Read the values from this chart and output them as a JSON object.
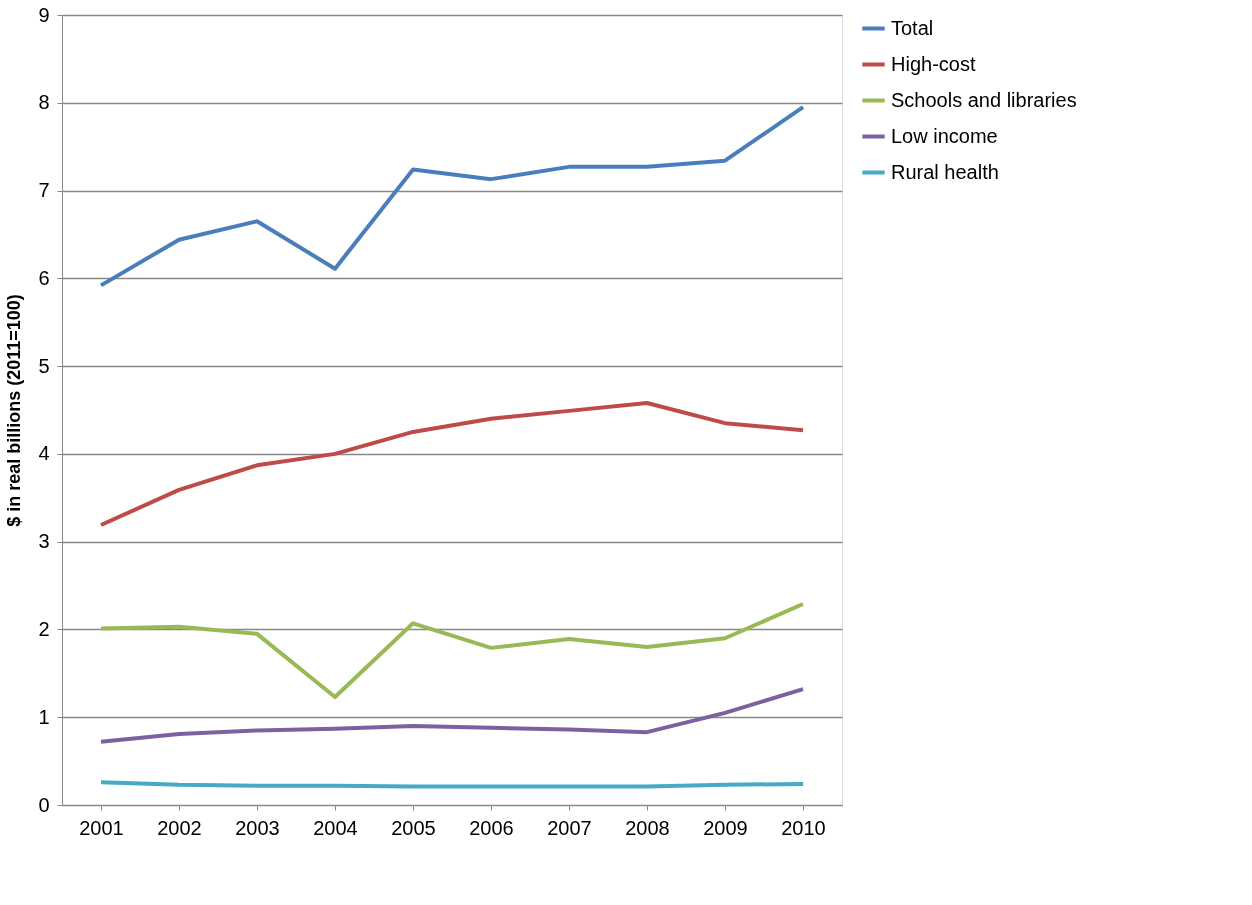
{
  "chart_data": {
    "type": "line",
    "ylabel": "$ in real billions (2011=100)",
    "categories": [
      "2001",
      "2002",
      "2003",
      "2004",
      "2005",
      "2006",
      "2007",
      "2008",
      "2009",
      "2010"
    ],
    "series": [
      {
        "name": "Total",
        "color": "#4a7ebb",
        "values": [
          5.92,
          6.44,
          6.65,
          6.11,
          7.24,
          7.13,
          7.27,
          7.27,
          7.34,
          7.95
        ]
      },
      {
        "name": "High-cost",
        "color": "#be4b48",
        "values": [
          3.19,
          3.59,
          3.87,
          4.0,
          4.25,
          4.4,
          4.49,
          4.58,
          4.35,
          4.27
        ]
      },
      {
        "name": "Schools and libraries",
        "color": "#98b954",
        "values": [
          2.01,
          2.03,
          1.95,
          1.23,
          2.07,
          1.79,
          1.89,
          1.8,
          1.9,
          2.29
        ]
      },
      {
        "name": "Low income",
        "color": "#7d60a0",
        "values": [
          0.72,
          0.81,
          0.85,
          0.87,
          0.9,
          0.88,
          0.86,
          0.83,
          1.05,
          1.32
        ]
      },
      {
        "name": "Rural health",
        "color": "#46aac5",
        "values": [
          0.26,
          0.23,
          0.22,
          0.22,
          0.21,
          0.21,
          0.21,
          0.21,
          0.23,
          0.24
        ]
      }
    ],
    "ylim": [
      0,
      9
    ],
    "yticks": [
      0,
      1,
      2,
      3,
      4,
      5,
      6,
      7,
      8,
      9
    ],
    "grid": "y",
    "legend": "right",
    "marker": "none",
    "line_style": "solid"
  }
}
